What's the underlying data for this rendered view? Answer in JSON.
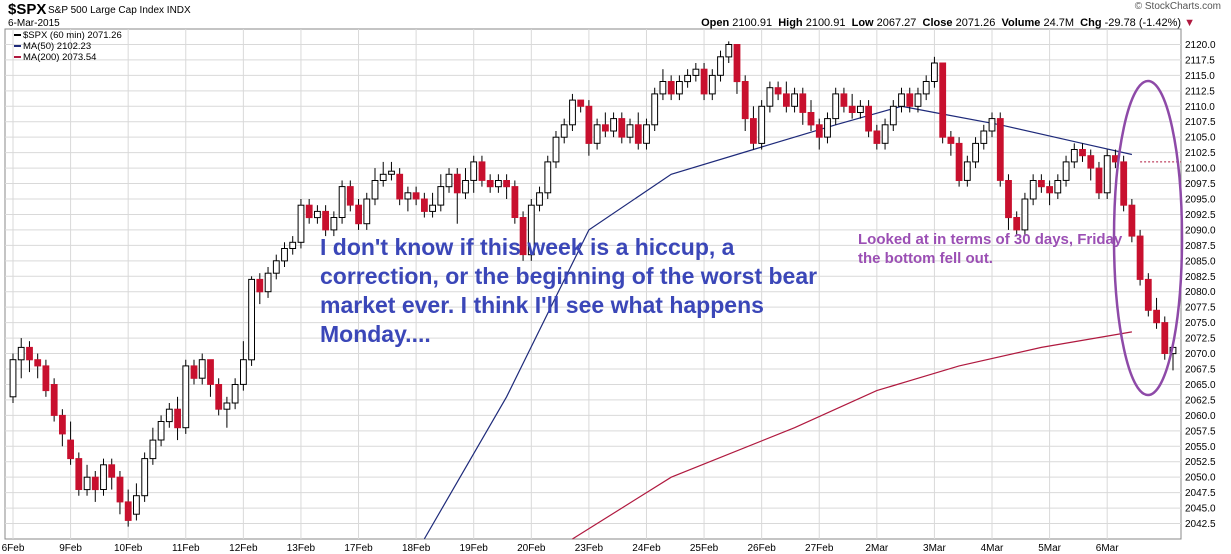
{
  "header": {
    "symbol": "$SPX",
    "description": "S&P 500 Large Cap Index",
    "exchange": "INDX",
    "date": "6-Mar-2015",
    "copyright": "© StockCharts.com",
    "open_label": "Open",
    "open": "2100.91",
    "high_label": "High",
    "high": "2100.91",
    "low_label": "Low",
    "low": "2067.27",
    "close_label": "Close",
    "close": "2071.26",
    "volume_label": "Volume",
    "volume": "24.7M",
    "chg_label": "Chg",
    "chg": "-29.78 (-1.42%)"
  },
  "legend": [
    {
      "label": "$SPX (60 min) 2071.26",
      "color": "#000000"
    },
    {
      "label": "MA(50) 2102.23",
      "color": "#1e2a7a"
    },
    {
      "label": "MA(200) 2073.54",
      "color": "#b0193f"
    }
  ],
  "annotations": {
    "main_text": "I don't know if this week is a hiccup, a correction, or the beginning of the worst bear market ever. I think I'll see what happens Monday....",
    "side_text": "Looked at in terms of 30 days, Friday the bottom fell out."
  },
  "chart_data": {
    "type": "candlestick",
    "title": "$SPX S&P 500 Large Cap Index",
    "interval": "60 min",
    "ylim": [
      2040,
      2122.5
    ],
    "y_ticks": [
      2042.5,
      2045,
      2047.5,
      2050,
      2052.5,
      2055,
      2057.5,
      2060,
      2062.5,
      2065,
      2067.5,
      2070,
      2072.5,
      2075,
      2077.5,
      2080,
      2082.5,
      2085,
      2087.5,
      2090,
      2092.5,
      2095,
      2097.5,
      2100,
      2102.5,
      2105,
      2107.5,
      2110,
      2112.5,
      2115,
      2117.5,
      2120
    ],
    "x_labels": [
      {
        "label": "6Feb",
        "index": 0
      },
      {
        "label": "9Feb",
        "index": 7
      },
      {
        "label": "10Feb",
        "index": 14
      },
      {
        "label": "11Feb",
        "index": 21
      },
      {
        "label": "12Feb",
        "index": 28
      },
      {
        "label": "13Feb",
        "index": 35
      },
      {
        "label": "17Feb",
        "index": 42
      },
      {
        "label": "18Feb",
        "index": 49
      },
      {
        "label": "19Feb",
        "index": 56
      },
      {
        "label": "20Feb",
        "index": 63
      },
      {
        "label": "23Feb",
        "index": 70
      },
      {
        "label": "24Feb",
        "index": 77
      },
      {
        "label": "25Feb",
        "index": 84
      },
      {
        "label": "26Feb",
        "index": 91
      },
      {
        "label": "27Feb",
        "index": 98
      },
      {
        "label": "2Mar",
        "index": 105
      },
      {
        "label": "3Mar",
        "index": 112
      },
      {
        "label": "4Mar",
        "index": 119
      },
      {
        "label": "5Mar",
        "index": 126
      },
      {
        "label": "6Mar",
        "index": 133
      }
    ],
    "last_close_marker": 2101,
    "candles": [
      [
        2063,
        2069,
        2062,
        2070
      ],
      [
        2069,
        2071,
        2066,
        2072.5
      ],
      [
        2071,
        2069,
        2067,
        2072
      ],
      [
        2069,
        2068,
        2066,
        2070
      ],
      [
        2068,
        2064,
        2063,
        2069
      ],
      [
        2065,
        2060,
        2059,
        2066
      ],
      [
        2060,
        2057,
        2055,
        2061
      ],
      [
        2056,
        2053,
        2052,
        2059
      ],
      [
        2053,
        2048,
        2047,
        2054
      ],
      [
        2048,
        2050,
        2047,
        2052
      ],
      [
        2050,
        2048,
        2046,
        2051
      ],
      [
        2048,
        2052,
        2047,
        2053
      ],
      [
        2052,
        2050,
        2048,
        2053
      ],
      [
        2050,
        2046,
        2044,
        2051
      ],
      [
        2046,
        2043,
        2042,
        2048
      ],
      [
        2044,
        2047,
        2043,
        2049
      ],
      [
        2047,
        2053,
        2046,
        2054
      ],
      [
        2053,
        2056,
        2052,
        2058
      ],
      [
        2056,
        2059,
        2055,
        2060
      ],
      [
        2059,
        2061,
        2058,
        2062
      ],
      [
        2061,
        2058,
        2056,
        2063
      ],
      [
        2058,
        2068,
        2057,
        2069
      ],
      [
        2068,
        2066,
        2065,
        2069
      ],
      [
        2066,
        2069,
        2065,
        2070
      ],
      [
        2069,
        2065,
        2063,
        2069
      ],
      [
        2065,
        2061,
        2060,
        2066
      ],
      [
        2061,
        2062,
        2058,
        2063
      ],
      [
        2062,
        2065,
        2061,
        2066
      ],
      [
        2065,
        2069,
        2064,
        2072
      ],
      [
        2069,
        2082,
        2068,
        2082.5
      ],
      [
        2082,
        2080,
        2078,
        2083
      ],
      [
        2080,
        2083,
        2079,
        2084
      ],
      [
        2083,
        2085,
        2082,
        2086
      ],
      [
        2085,
        2087,
        2084,
        2088
      ],
      [
        2087,
        2088,
        2086,
        2089
      ],
      [
        2088,
        2094,
        2087,
        2095
      ],
      [
        2094,
        2092,
        2091,
        2095
      ],
      [
        2092,
        2093,
        2091,
        2094
      ],
      [
        2093,
        2090,
        2089,
        2094
      ],
      [
        2090,
        2092,
        2089,
        2093
      ],
      [
        2092,
        2097,
        2091,
        2098
      ],
      [
        2097,
        2094,
        2093,
        2098
      ],
      [
        2094,
        2091,
        2090,
        2095
      ],
      [
        2091,
        2095,
        2090,
        2096
      ],
      [
        2095,
        2098,
        2094,
        2100
      ],
      [
        2098,
        2099,
        2097,
        2101
      ],
      [
        2099,
        2099.5,
        2098,
        2101
      ],
      [
        2099,
        2095,
        2094,
        2100
      ],
      [
        2095,
        2096,
        2093,
        2097
      ],
      [
        2096,
        2095,
        2094,
        2097
      ],
      [
        2095,
        2093,
        2092,
        2096
      ],
      [
        2093,
        2094,
        2092,
        2096
      ],
      [
        2094,
        2097,
        2093,
        2099
      ],
      [
        2097,
        2099,
        2096,
        2100
      ],
      [
        2099,
        2096,
        2091,
        2100
      ],
      [
        2096,
        2098,
        2095,
        2100
      ],
      [
        2098,
        2101,
        2096,
        2102
      ],
      [
        2101,
        2098,
        2097,
        2102
      ],
      [
        2098,
        2097,
        2096,
        2099
      ],
      [
        2097,
        2098,
        2096,
        2099
      ],
      [
        2098,
        2097,
        2095,
        2099
      ],
      [
        2097,
        2092,
        2091,
        2098
      ],
      [
        2092,
        2086,
        2085,
        2093
      ],
      [
        2086,
        2094,
        2085,
        2095
      ],
      [
        2094,
        2096,
        2093,
        2097
      ],
      [
        2096,
        2101,
        2095,
        2102
      ],
      [
        2101,
        2105,
        2100,
        2106
      ],
      [
        2105,
        2107,
        2104,
        2108
      ],
      [
        2107,
        2111,
        2106,
        2112
      ],
      [
        2111,
        2110,
        2109,
        2111
      ],
      [
        2110,
        2104,
        2102,
        2111
      ],
      [
        2104,
        2107,
        2103,
        2108
      ],
      [
        2107,
        2106,
        2105,
        2109
      ],
      [
        2106,
        2108,
        2105,
        2109
      ],
      [
        2108,
        2105,
        2104,
        2109
      ],
      [
        2105,
        2107,
        2104,
        2108
      ],
      [
        2107,
        2104,
        2103,
        2109
      ],
      [
        2104,
        2107,
        2103,
        2108
      ],
      [
        2107,
        2112,
        2106,
        2113
      ],
      [
        2112,
        2114,
        2111,
        2116
      ],
      [
        2114,
        2112,
        2111,
        2115
      ],
      [
        2112,
        2114,
        2111,
        2115
      ],
      [
        2114,
        2115,
        2113,
        2116
      ],
      [
        2115,
        2116,
        2114,
        2117
      ],
      [
        2116,
        2112,
        2111,
        2117
      ],
      [
        2112,
        2115,
        2111,
        2116
      ],
      [
        2115,
        2118,
        2114,
        2119
      ],
      [
        2118,
        2120,
        2117,
        2120.5
      ],
      [
        2120,
        2114,
        2112,
        2120
      ],
      [
        2114,
        2108,
        2106,
        2115
      ],
      [
        2108,
        2104,
        2103,
        2110
      ],
      [
        2104,
        2110,
        2103,
        2111
      ],
      [
        2110,
        2113,
        2109,
        2114
      ],
      [
        2113,
        2112,
        2111,
        2114
      ],
      [
        2112,
        2110,
        2109,
        2114
      ],
      [
        2110,
        2112,
        2109,
        2113
      ],
      [
        2112,
        2109,
        2107,
        2113
      ],
      [
        2109,
        2107,
        2106,
        2111
      ],
      [
        2107,
        2105,
        2103,
        2108
      ],
      [
        2105,
        2108,
        2104,
        2109
      ],
      [
        2108,
        2112,
        2107,
        2113
      ],
      [
        2112,
        2110,
        2109,
        2113
      ],
      [
        2110,
        2109,
        2108,
        2112
      ],
      [
        2109,
        2110,
        2108,
        2111
      ],
      [
        2110,
        2106,
        2105,
        2111
      ],
      [
        2106,
        2104,
        2103,
        2107
      ],
      [
        2104,
        2107,
        2103,
        2108
      ],
      [
        2107,
        2110,
        2106,
        2111
      ],
      [
        2110,
        2112,
        2109,
        2113
      ],
      [
        2112,
        2110,
        2109,
        2113
      ],
      [
        2110,
        2112,
        2109,
        2113
      ],
      [
        2112,
        2114,
        2111,
        2115
      ],
      [
        2114,
        2117,
        2113,
        2118
      ],
      [
        2117,
        2105,
        2104,
        2117
      ],
      [
        2105,
        2104,
        2102,
        2106
      ],
      [
        2104,
        2098,
        2097,
        2105
      ],
      [
        2098,
        2101,
        2097,
        2102
      ],
      [
        2101,
        2104,
        2100,
        2105
      ],
      [
        2104,
        2106,
        2103,
        2107
      ],
      [
        2106,
        2108,
        2105,
        2109
      ],
      [
        2108,
        2098,
        2097,
        2109
      ],
      [
        2098,
        2092,
        2090,
        2099
      ],
      [
        2092,
        2090,
        2089,
        2093
      ],
      [
        2090,
        2095,
        2089,
        2096
      ],
      [
        2095,
        2098,
        2094,
        2099
      ],
      [
        2098,
        2097,
        2096,
        2099
      ],
      [
        2097,
        2096,
        2094,
        2098
      ],
      [
        2096,
        2098,
        2095,
        2099
      ],
      [
        2098,
        2101,
        2097,
        2102
      ],
      [
        2101,
        2103,
        2100,
        2104
      ],
      [
        2103,
        2102,
        2101,
        2104
      ],
      [
        2102,
        2100,
        2098,
        2103
      ],
      [
        2100,
        2096,
        2095,
        2101
      ],
      [
        2096,
        2102,
        2095,
        2103
      ],
      [
        2102,
        2101,
        2100,
        2103
      ],
      [
        2101,
        2094,
        2093,
        2102
      ],
      [
        2094,
        2089,
        2088,
        2095
      ],
      [
        2089,
        2082,
        2081,
        2090
      ],
      [
        2082,
        2077,
        2076,
        2083
      ],
      [
        2077,
        2075,
        2074,
        2079
      ],
      [
        2075,
        2070,
        2069,
        2076
      ],
      [
        2070,
        2071,
        2067.27,
        2072
      ]
    ],
    "ma50": [
      [
        50,
        2040
      ],
      [
        60,
        2063
      ],
      [
        70,
        2090
      ],
      [
        80,
        2099
      ],
      [
        90,
        2103
      ],
      [
        100,
        2107
      ],
      [
        108,
        2110
      ],
      [
        112,
        2109
      ],
      [
        120,
        2107
      ],
      [
        130,
        2104
      ],
      [
        136,
        2102.2
      ]
    ],
    "ma200": [
      [
        68,
        2040
      ],
      [
        80,
        2050
      ],
      [
        95,
        2058
      ],
      [
        105,
        2064
      ],
      [
        115,
        2068
      ],
      [
        125,
        2071
      ],
      [
        136,
        2073.5
      ]
    ]
  }
}
